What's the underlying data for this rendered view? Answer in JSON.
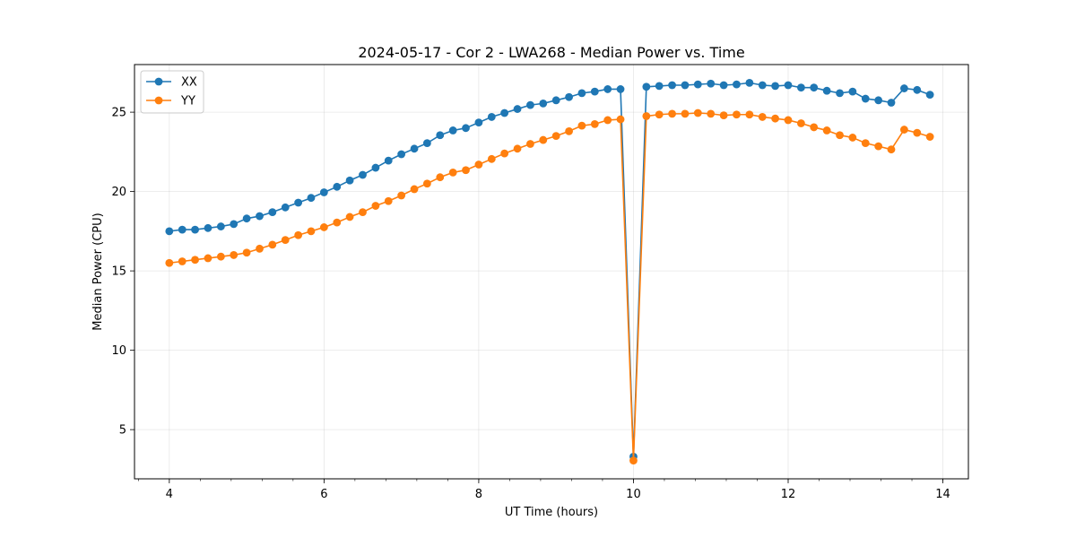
{
  "chart_data": {
    "type": "line",
    "title": "2024-05-17 - Cor 2 - LWA268 - Median Power vs. Time",
    "xlabel": "UT Time (hours)",
    "ylabel": "Median Power (CPU)",
    "xlim": [
      3.55,
      14.33
    ],
    "ylim": [
      1.9,
      28.0
    ],
    "xticks": [
      4,
      6,
      8,
      10,
      12,
      14
    ],
    "yticks": [
      5,
      10,
      15,
      20,
      25
    ],
    "grid": true,
    "legend_position": "top-left",
    "x": [
      4.0,
      4.167,
      4.333,
      4.5,
      4.667,
      4.833,
      5.0,
      5.167,
      5.333,
      5.5,
      5.667,
      5.833,
      6.0,
      6.167,
      6.333,
      6.5,
      6.667,
      6.833,
      7.0,
      7.167,
      7.333,
      7.5,
      7.667,
      7.833,
      8.0,
      8.167,
      8.333,
      8.5,
      8.667,
      8.833,
      9.0,
      9.167,
      9.333,
      9.5,
      9.667,
      9.833,
      10.0,
      10.167,
      10.333,
      10.5,
      10.667,
      10.833,
      11.0,
      11.167,
      11.333,
      11.5,
      11.667,
      11.833,
      12.0,
      12.167,
      12.333,
      12.5,
      12.667,
      12.833,
      13.0,
      13.167,
      13.333,
      13.5,
      13.667,
      13.833
    ],
    "series": [
      {
        "name": "XX",
        "color": "#1f77b4",
        "values": [
          17.5,
          17.6,
          17.6,
          17.7,
          17.8,
          17.95,
          18.3,
          18.45,
          18.7,
          19.0,
          19.3,
          19.6,
          19.95,
          20.3,
          20.7,
          21.05,
          21.5,
          21.95,
          22.35,
          22.7,
          23.05,
          23.55,
          23.85,
          24.0,
          24.35,
          24.7,
          24.95,
          25.2,
          25.45,
          25.55,
          25.75,
          25.95,
          26.2,
          26.3,
          26.45,
          26.45,
          3.3,
          26.6,
          26.65,
          26.7,
          26.7,
          26.75,
          26.8,
          26.7,
          26.75,
          26.85,
          26.7,
          26.65,
          26.7,
          26.55,
          26.55,
          26.35,
          26.2,
          26.3,
          25.85,
          25.75,
          25.6,
          26.5,
          26.4,
          26.1
        ]
      },
      {
        "name": "YY",
        "color": "#ff7f0e",
        "values": [
          15.5,
          15.6,
          15.7,
          15.8,
          15.9,
          16.0,
          16.15,
          16.4,
          16.65,
          16.95,
          17.25,
          17.5,
          17.75,
          18.05,
          18.4,
          18.7,
          19.1,
          19.4,
          19.75,
          20.15,
          20.5,
          20.9,
          21.2,
          21.35,
          21.7,
          22.05,
          22.4,
          22.7,
          23.0,
          23.25,
          23.5,
          23.8,
          24.15,
          24.25,
          24.5,
          24.55,
          3.05,
          24.75,
          24.85,
          24.9,
          24.9,
          24.95,
          24.9,
          24.8,
          24.85,
          24.85,
          24.7,
          24.6,
          24.5,
          24.3,
          24.05,
          23.85,
          23.55,
          23.4,
          23.05,
          22.85,
          22.65,
          23.9,
          23.7,
          23.45
        ]
      }
    ]
  }
}
